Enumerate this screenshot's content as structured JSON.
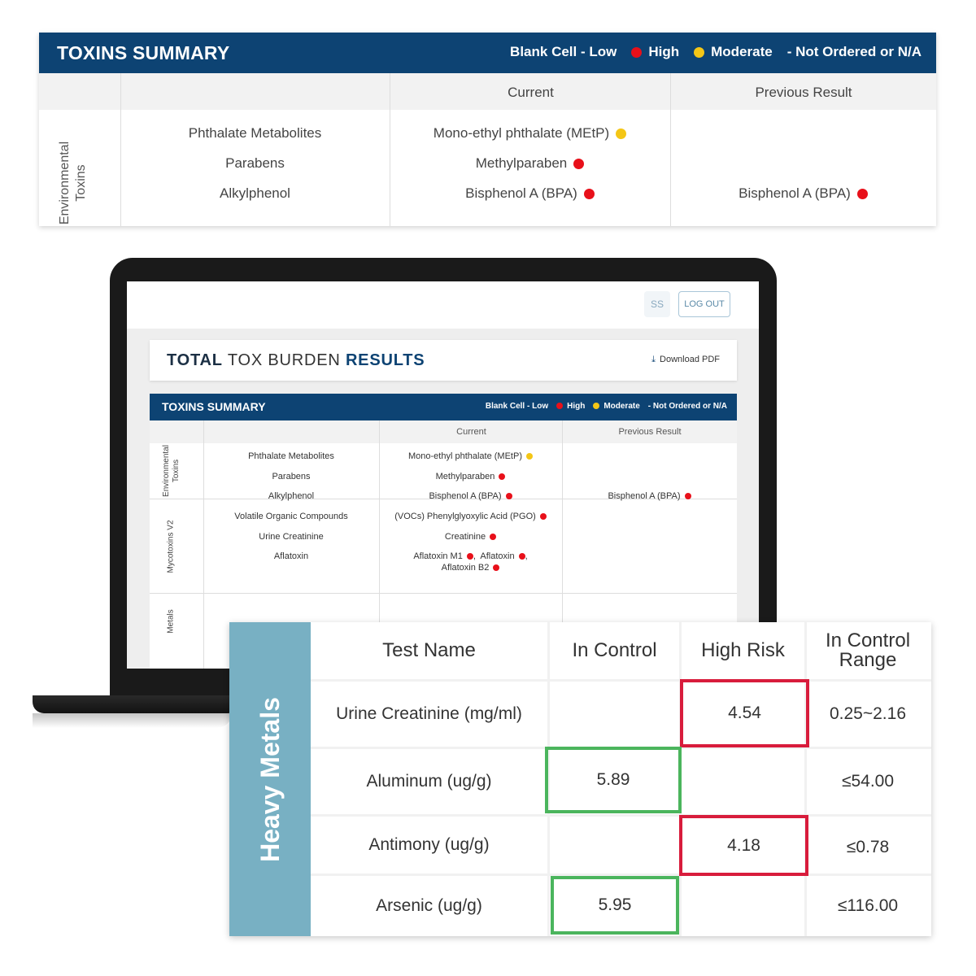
{
  "top_summary": {
    "title": "TOXINS SUMMARY",
    "legend": {
      "low": "Blank Cell - Low",
      "high": "High",
      "moderate": "Moderate",
      "not_ordered": "- Not Ordered or N/A"
    },
    "columns": {
      "current": "Current",
      "previous": "Previous Result"
    },
    "group": "Environmental Toxins",
    "categories": [
      "Phthalate Metabolites",
      "Parabens",
      "Alkylphenol"
    ],
    "current": [
      {
        "label": "Mono-ethyl phthalate (MEtP)",
        "level": "moderate"
      },
      {
        "label": "Methylparaben",
        "level": "high"
      },
      {
        "label": "Bisphenol A (BPA)",
        "level": "high"
      }
    ],
    "previous": [
      {
        "label": "",
        "level": ""
      },
      {
        "label": "",
        "level": ""
      },
      {
        "label": "Bisphenol A (BPA)",
        "level": "high"
      }
    ]
  },
  "screen": {
    "user_initials": "SS",
    "logout_label": "LOG OUT",
    "heading_part1": "TOTAL",
    "heading_part2": "TOX BURDEN",
    "heading_part3": "RESULTS",
    "download_label": "Download PDF",
    "summary_title": "TOXINS SUMMARY",
    "legend": {
      "low": "Blank Cell - Low",
      "high": "High",
      "moderate": "Moderate",
      "not_ordered": "- Not Ordered or N/A"
    },
    "columns": {
      "current": "Current",
      "previous": "Previous Result"
    },
    "groups": [
      {
        "name": "Environmental Toxins",
        "categories": [
          "Phthalate Metabolites",
          "Parabens",
          "Alkylphenol"
        ],
        "current": [
          "Mono-ethyl phthalate (MEtP)",
          "Methylparaben",
          "Bisphenol A (BPA)"
        ],
        "previous": [
          "",
          "",
          "Bisphenol A (BPA)"
        ]
      },
      {
        "name": "Mycotoxins V2",
        "categories": [
          "Volatile Organic Compounds",
          "Urine Creatinine",
          "Aflatoxin"
        ],
        "current": [
          "(VOCs) Phenylglyoxylic Acid (PGO)",
          "Creatinine",
          "Aflatoxin M1",
          "Aflatoxin",
          "Aflatoxin B2"
        ],
        "previous": []
      },
      {
        "name": "Metals"
      }
    ]
  },
  "heavy_metals": {
    "group": "Heavy Metals",
    "columns": {
      "test_name": "Test Name",
      "in_control": "In Control",
      "high_risk": "High Risk",
      "range": "In Control Range"
    },
    "rows": [
      {
        "name": "Urine Creatinine (mg/ml)",
        "in_control": "",
        "high_risk": "4.54",
        "range": "0.25~2.16"
      },
      {
        "name": "Aluminum (ug/g)",
        "in_control": "5.89",
        "high_risk": "",
        "range": "≤54.00"
      },
      {
        "name": "Antimony (ug/g)",
        "in_control": "",
        "high_risk": "4.18",
        "range": "≤0.78"
      },
      {
        "name": "Arsenic (ug/g)",
        "in_control": "5.95",
        "high_risk": "",
        "range": "≤116.00"
      }
    ]
  },
  "colors": {
    "navy": "#0d4373",
    "high": "#e8101a",
    "moderate": "#f4c616",
    "metals_side": "#78b0c3",
    "box_red": "#d81c3c",
    "box_green": "#4bb55d"
  }
}
